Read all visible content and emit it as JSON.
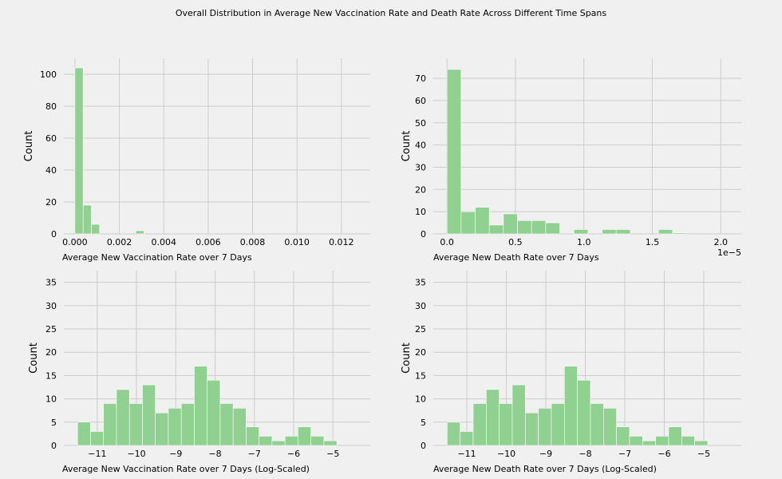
{
  "figure": {
    "title": "Overall Distribution in Average New Vaccination Rate and Death Rate Across Different Time Spans",
    "background": "#f0f0f0",
    "bar_color": "#90d090",
    "grid_color": "#cccccc"
  },
  "chart_data": [
    {
      "type": "bar",
      "title": "",
      "xlabel": "Average New Vaccination Rate over 7 Days",
      "ylabel": "Count",
      "xlim": [
        -0.0005,
        0.0133
      ],
      "ylim": [
        0,
        110
      ],
      "xticks": [
        0.0,
        0.002,
        0.004,
        0.006,
        0.008,
        0.01,
        0.012
      ],
      "xtick_labels": [
        "0.000",
        "0.002",
        "0.004",
        "0.006",
        "0.008",
        "0.010",
        "0.012"
      ],
      "yticks": [
        0,
        20,
        40,
        60,
        80,
        100
      ],
      "ytick_labels": [
        "0",
        "20",
        "40",
        "60",
        "80",
        "100"
      ],
      "offset_label": "",
      "grid": true,
      "bins": [
        {
          "x0": 0.0,
          "x1": 0.00037,
          "count": 104
        },
        {
          "x0": 0.00037,
          "x1": 0.00074,
          "count": 18
        },
        {
          "x0": 0.00074,
          "x1": 0.00111,
          "count": 6
        },
        {
          "x0": 0.00274,
          "x1": 0.00311,
          "count": 2
        }
      ]
    },
    {
      "type": "bar",
      "title": "",
      "xlabel": "Average New Death Rate over 7 Days",
      "ylabel": "Count",
      "xlim": [
        -0.1,
        2.15
      ],
      "ylim": [
        0,
        79
      ],
      "xticks": [
        0.0,
        0.5,
        1.0,
        1.5,
        2.0
      ],
      "xtick_labels": [
        "0.0",
        "0.5",
        "1.0",
        "1.5",
        "2.0"
      ],
      "yticks": [
        0,
        10,
        20,
        30,
        40,
        50,
        60,
        70
      ],
      "ytick_labels": [
        "0",
        "10",
        "20",
        "30",
        "40",
        "50",
        "60",
        "70"
      ],
      "offset_label": "1e−5",
      "grid": true,
      "bins": [
        {
          "x0": 0.0,
          "x1": 0.103,
          "count": 74
        },
        {
          "x0": 0.103,
          "x1": 0.206,
          "count": 10
        },
        {
          "x0": 0.206,
          "x1": 0.309,
          "count": 12
        },
        {
          "x0": 0.309,
          "x1": 0.412,
          "count": 4
        },
        {
          "x0": 0.412,
          "x1": 0.515,
          "count": 9
        },
        {
          "x0": 0.515,
          "x1": 0.618,
          "count": 6
        },
        {
          "x0": 0.618,
          "x1": 0.721,
          "count": 6
        },
        {
          "x0": 0.721,
          "x1": 0.824,
          "count": 5
        },
        {
          "x0": 0.927,
          "x1": 1.03,
          "count": 2
        },
        {
          "x0": 1.133,
          "x1": 1.236,
          "count": 2
        },
        {
          "x0": 1.236,
          "x1": 1.339,
          "count": 2
        },
        {
          "x0": 1.545,
          "x1": 1.648,
          "count": 2
        },
        {
          "x0": 1.648,
          "x1": 1.751,
          "count": 0.5
        }
      ]
    },
    {
      "type": "bar",
      "title": "",
      "xlabel": "Average New Vaccination Rate over 7 Days (Log-Scaled)",
      "ylabel": "Count",
      "xlim": [
        -11.85,
        -4.05
      ],
      "ylim": [
        0,
        37.5
      ],
      "xticks": [
        -11,
        -10,
        -9,
        -8,
        -7,
        -6,
        -5
      ],
      "xtick_labels": [
        "−11",
        "−10",
        "−9",
        "−8",
        "−7",
        "−6",
        "−5"
      ],
      "yticks": [
        0,
        5,
        10,
        15,
        20,
        25,
        30,
        35
      ],
      "ytick_labels": [
        "0",
        "5",
        "10",
        "15",
        "20",
        "25",
        "30",
        "35"
      ],
      "offset_label": "",
      "grid": true,
      "bins": [
        {
          "x0": -11.5,
          "x1": -11.17,
          "count": 5
        },
        {
          "x0": -11.17,
          "x1": -10.84,
          "count": 3
        },
        {
          "x0": -10.84,
          "x1": -10.51,
          "count": 9
        },
        {
          "x0": -10.51,
          "x1": -10.18,
          "count": 12
        },
        {
          "x0": -10.18,
          "x1": -9.85,
          "count": 9
        },
        {
          "x0": -9.85,
          "x1": -9.52,
          "count": 13
        },
        {
          "x0": -9.52,
          "x1": -9.19,
          "count": 7
        },
        {
          "x0": -9.19,
          "x1": -8.86,
          "count": 8
        },
        {
          "x0": -8.86,
          "x1": -8.53,
          "count": 9
        },
        {
          "x0": -8.53,
          "x1": -8.2,
          "count": 17
        },
        {
          "x0": -8.2,
          "x1": -7.87,
          "count": 14
        },
        {
          "x0": -7.87,
          "x1": -7.54,
          "count": 9
        },
        {
          "x0": -7.54,
          "x1": -7.21,
          "count": 8
        },
        {
          "x0": -7.21,
          "x1": -6.88,
          "count": 4
        },
        {
          "x0": -6.88,
          "x1": -6.55,
          "count": 2
        },
        {
          "x0": -6.55,
          "x1": -6.22,
          "count": 1
        },
        {
          "x0": -6.22,
          "x1": -5.89,
          "count": 2
        },
        {
          "x0": -5.89,
          "x1": -5.56,
          "count": 4
        },
        {
          "x0": -5.56,
          "x1": -5.23,
          "count": 2
        },
        {
          "x0": -5.23,
          "x1": -4.9,
          "count": 1
        }
      ]
    },
    {
      "type": "bar",
      "title": "",
      "xlabel": "Average New Death Rate over 7 Days (Log-Scaled)",
      "ylabel": "Count",
      "xlim": [
        -11.85,
        -4.05
      ],
      "ylim": [
        0,
        37.5
      ],
      "xticks": [
        -11,
        -10,
        -9,
        -8,
        -7,
        -6,
        -5
      ],
      "xtick_labels": [
        "−11",
        "−10",
        "−9",
        "−8",
        "−7",
        "−6",
        "−5"
      ],
      "yticks": [
        0,
        5,
        10,
        15,
        20,
        25,
        30,
        35
      ],
      "ytick_labels": [
        "0",
        "5",
        "10",
        "15",
        "20",
        "25",
        "30",
        "35"
      ],
      "offset_label": "",
      "grid": true,
      "bins": [
        {
          "x0": -11.5,
          "x1": -11.17,
          "count": 5
        },
        {
          "x0": -11.17,
          "x1": -10.84,
          "count": 3
        },
        {
          "x0": -10.84,
          "x1": -10.51,
          "count": 9
        },
        {
          "x0": -10.51,
          "x1": -10.18,
          "count": 12
        },
        {
          "x0": -10.18,
          "x1": -9.85,
          "count": 9
        },
        {
          "x0": -9.85,
          "x1": -9.52,
          "count": 13
        },
        {
          "x0": -9.52,
          "x1": -9.19,
          "count": 7
        },
        {
          "x0": -9.19,
          "x1": -8.86,
          "count": 8
        },
        {
          "x0": -8.86,
          "x1": -8.53,
          "count": 9
        },
        {
          "x0": -8.53,
          "x1": -8.2,
          "count": 17
        },
        {
          "x0": -8.2,
          "x1": -7.87,
          "count": 14
        },
        {
          "x0": -7.87,
          "x1": -7.54,
          "count": 9
        },
        {
          "x0": -7.54,
          "x1": -7.21,
          "count": 8
        },
        {
          "x0": -7.21,
          "x1": -6.88,
          "count": 4
        },
        {
          "x0": -6.88,
          "x1": -6.55,
          "count": 2
        },
        {
          "x0": -6.55,
          "x1": -6.22,
          "count": 1
        },
        {
          "x0": -6.22,
          "x1": -5.89,
          "count": 2
        },
        {
          "x0": -5.89,
          "x1": -5.56,
          "count": 4
        },
        {
          "x0": -5.56,
          "x1": -5.23,
          "count": 2
        },
        {
          "x0": -5.23,
          "x1": -4.9,
          "count": 1
        }
      ]
    }
  ]
}
